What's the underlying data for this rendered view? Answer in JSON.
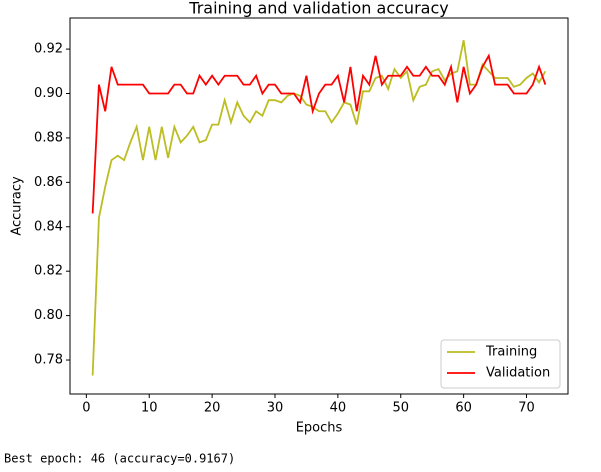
{
  "chart_data": {
    "type": "line",
    "title": "Training and validation accuracy",
    "xlabel": "Epochs",
    "ylabel": "Accuracy",
    "x": [
      1,
      2,
      3,
      4,
      5,
      6,
      7,
      8,
      9,
      10,
      11,
      12,
      13,
      14,
      15,
      16,
      17,
      18,
      19,
      20,
      21,
      22,
      23,
      24,
      25,
      26,
      27,
      28,
      29,
      30,
      31,
      32,
      33,
      34,
      35,
      36,
      37,
      38,
      39,
      40,
      41,
      42,
      43,
      44,
      45,
      46,
      47,
      48,
      49,
      50,
      51,
      52,
      53,
      54,
      55,
      56,
      57,
      58,
      59,
      60,
      61,
      62,
      63,
      64,
      65,
      66,
      67,
      68,
      69,
      70,
      71,
      72,
      73
    ],
    "series": [
      {
        "name": "Training",
        "color": "#bcbd22",
        "values": [
          0.773,
          0.844,
          0.858,
          0.87,
          0.872,
          0.87,
          0.878,
          0.885,
          0.87,
          0.885,
          0.87,
          0.885,
          0.871,
          0.885,
          0.878,
          0.881,
          0.885,
          0.878,
          0.879,
          0.886,
          0.886,
          0.897,
          0.887,
          0.896,
          0.89,
          0.887,
          0.892,
          0.89,
          0.897,
          0.897,
          0.896,
          0.899,
          0.9,
          0.899,
          0.895,
          0.894,
          0.892,
          0.892,
          0.887,
          0.891,
          0.896,
          0.895,
          0.886,
          0.901,
          0.901,
          0.907,
          0.908,
          0.902,
          0.911,
          0.907,
          0.91,
          0.897,
          0.903,
          0.904,
          0.91,
          0.911,
          0.906,
          0.909,
          0.91,
          0.924,
          0.904,
          0.904,
          0.913,
          0.91,
          0.907,
          0.907,
          0.907,
          0.903,
          0.904,
          0.907,
          0.909,
          0.905,
          0.91
        ]
      },
      {
        "name": "Validation",
        "color": "#ff0000",
        "values": [
          0.846,
          0.904,
          0.892,
          0.912,
          0.904,
          0.904,
          0.904,
          0.904,
          0.904,
          0.9,
          0.9,
          0.9,
          0.9,
          0.904,
          0.904,
          0.9,
          0.9,
          0.908,
          0.904,
          0.908,
          0.904,
          0.908,
          0.908,
          0.908,
          0.904,
          0.904,
          0.908,
          0.9,
          0.904,
          0.904,
          0.9,
          0.9,
          0.9,
          0.896,
          0.908,
          0.892,
          0.9,
          0.904,
          0.904,
          0.908,
          0.896,
          0.912,
          0.892,
          0.908,
          0.904,
          0.917,
          0.904,
          0.908,
          0.908,
          0.908,
          0.912,
          0.908,
          0.908,
          0.912,
          0.908,
          0.908,
          0.904,
          0.912,
          0.896,
          0.912,
          0.9,
          0.904,
          0.912,
          0.917,
          0.904,
          0.904,
          0.904,
          0.9,
          0.9,
          0.9,
          0.904,
          0.912,
          0.904
        ]
      }
    ],
    "xlim": [
      -2.6,
      76.6
    ],
    "xticks": [
      0,
      10,
      20,
      30,
      40,
      50,
      60,
      70
    ],
    "ylim": [
      0.7647,
      0.934
    ],
    "yticks": [
      0.78,
      {
        "value": 0.8,
        "label": "0.80"
      },
      0.82,
      0.84,
      0.86,
      0.88,
      {
        "value": 0.9,
        "label": "0.90"
      },
      0.92
    ],
    "grid": false,
    "legend": "lower right",
    "caption": "Best epoch: 46 (accuracy=0.9167)"
  }
}
